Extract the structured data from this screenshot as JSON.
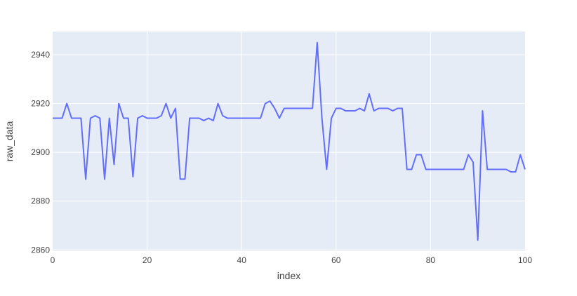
{
  "chart_data": {
    "type": "line",
    "title": "",
    "xlabel": "index",
    "ylabel": "raw_data",
    "xlim": [
      0,
      100
    ],
    "ylim": [
      2859.5,
      2949.5
    ],
    "x_ticks": [
      0,
      20,
      40,
      60,
      80,
      100
    ],
    "y_ticks": [
      2860,
      2880,
      2900,
      2920,
      2940
    ],
    "grid": true,
    "colors": {
      "line": "#636efa",
      "plot_bg": "#e5ecf6",
      "grid": "#ffffff",
      "text": "#444444"
    },
    "series": [
      {
        "name": "raw_data",
        "x": [
          0,
          1,
          2,
          3,
          4,
          5,
          6,
          7,
          8,
          9,
          10,
          11,
          12,
          13,
          14,
          15,
          16,
          17,
          18,
          19,
          20,
          21,
          22,
          23,
          24,
          25,
          26,
          27,
          28,
          29,
          30,
          31,
          32,
          33,
          34,
          35,
          36,
          37,
          38,
          39,
          40,
          41,
          42,
          43,
          44,
          45,
          46,
          47,
          48,
          49,
          50,
          51,
          52,
          53,
          54,
          55,
          56,
          57,
          58,
          59,
          60,
          61,
          62,
          63,
          64,
          65,
          66,
          67,
          68,
          69,
          70,
          71,
          72,
          73,
          74,
          75,
          76,
          77,
          78,
          79,
          80,
          81,
          82,
          83,
          84,
          85,
          86,
          87,
          88,
          89,
          90,
          91,
          92,
          93,
          94,
          95,
          96,
          97,
          98,
          99,
          100
        ],
        "values": [
          2914,
          2914,
          2914,
          2920,
          2914,
          2914,
          2914,
          2889,
          2914,
          2915,
          2914,
          2889,
          2914,
          2895,
          2920,
          2914,
          2914,
          2890,
          2914,
          2915,
          2914,
          2914,
          2914,
          2915,
          2920,
          2914,
          2918,
          2889,
          2889,
          2914,
          2914,
          2914,
          2913,
          2914,
          2913,
          2920,
          2915,
          2914,
          2914,
          2914,
          2914,
          2914,
          2914,
          2914,
          2914,
          2920,
          2921,
          2918,
          2914,
          2918,
          2918,
          2918,
          2918,
          2918,
          2918,
          2918,
          2945,
          2914,
          2893,
          2914,
          2918,
          2918,
          2917,
          2917,
          2917,
          2918,
          2917,
          2924,
          2917,
          2918,
          2918,
          2918,
          2917,
          2918,
          2918,
          2893,
          2893,
          2899,
          2899,
          2893,
          2893,
          2893,
          2893,
          2893,
          2893,
          2893,
          2893,
          2893,
          2899,
          2896,
          2864,
          2917,
          2893,
          2893,
          2893,
          2893,
          2893,
          2892,
          2892,
          2899,
          2893
        ]
      }
    ]
  }
}
